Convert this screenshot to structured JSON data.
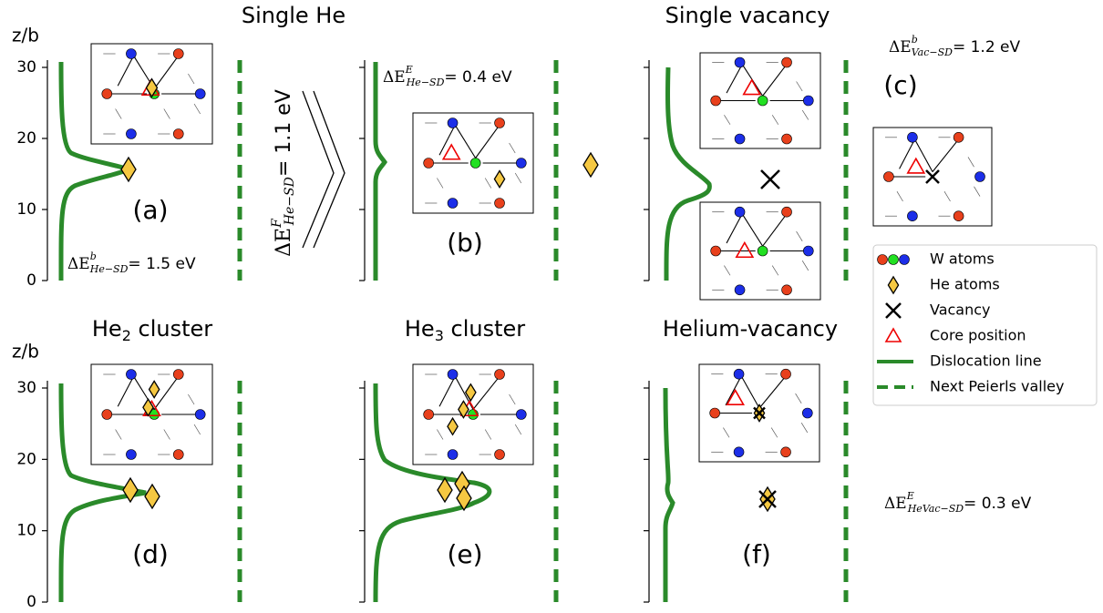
{
  "axis": {
    "ylabel": "z/b",
    "yticks": [
      "0",
      "10",
      "20",
      "30"
    ]
  },
  "titles": [
    {
      "main": "Single He"
    },
    {
      "main": "Single vacancy"
    },
    {
      "main": "He",
      "sub": "2",
      "rest": " cluster"
    },
    {
      "main": "He",
      "sub": "3",
      "rest": " cluster"
    },
    {
      "main": "Helium-vacancy"
    }
  ],
  "panel_labels": [
    "(a)",
    "(b)",
    "(c)",
    "(d)",
    "(e)",
    "(f)"
  ],
  "energies": [
    {
      "symbol": "ΔE",
      "sup": "b",
      "sub": "He−SD",
      "value": "= 1.5 eV"
    },
    {
      "symbol": "ΔE",
      "sup": "F",
      "sub": "He−SD",
      "value": "= 1.1 eV"
    },
    {
      "symbol": "ΔE",
      "sup": "E",
      "sub": "He−SD",
      "value": "= 0.4 eV"
    },
    {
      "symbol": "ΔE",
      "sup": "b",
      "sub": "Vac−SD",
      "value": "= 1.2 eV"
    },
    {
      "symbol": "ΔE",
      "sup": "E",
      "sub": "HeVac−SD",
      "value": "= 0.3 eV"
    }
  ],
  "legend": [
    "W atoms",
    "He atoms",
    "Vacancy",
    "Core position",
    "Dislocation line",
    "Next Peierls valley"
  ]
}
